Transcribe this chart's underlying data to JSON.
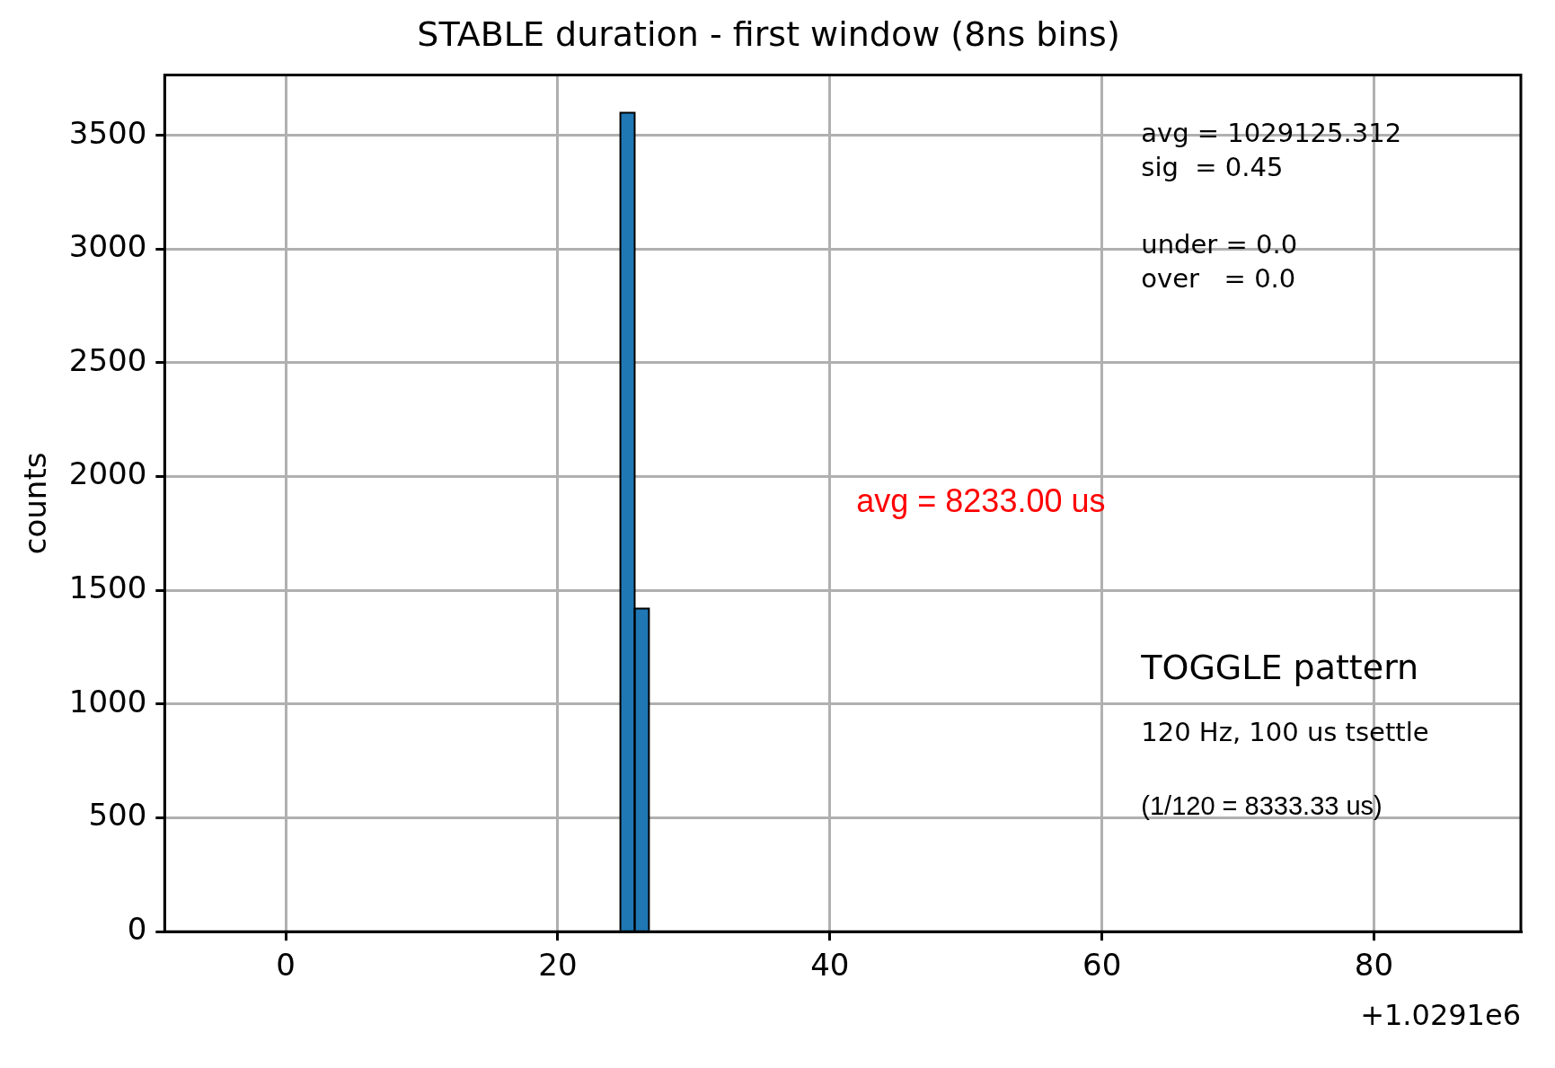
{
  "chart_data": {
    "type": "histogram",
    "title": "STABLE duration - first window (8ns bins)",
    "ylabel": "counts",
    "bins": [
      24.6,
      25.65,
      26.7
    ],
    "values": [
      3600,
      1420
    ],
    "color": "#1f77b4",
    "xlim": [
      -8.9,
      90.8
    ],
    "xticks": [
      0,
      20,
      40,
      60,
      80
    ],
    "ylim": [
      0,
      3765
    ],
    "yticks": [
      0,
      500,
      1000,
      1500,
      2000,
      2500,
      3000,
      3500
    ],
    "grid": true,
    "annotations": [
      "+1.0291e6",
      "avg = 1029125.312",
      "sig  = 0.45",
      "under = 0.0",
      "over   = 0.0",
      "avg = 8233.00 us",
      "TOGGLE pattern",
      "120 Hz, 100 us tsettle",
      "(1/120 = 8333.33 us)"
    ]
  }
}
